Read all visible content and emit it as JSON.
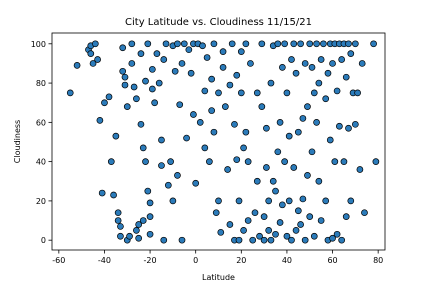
{
  "chart_data": {
    "type": "scatter",
    "title": "City Latitude vs. Cloudiness 11/15/21",
    "x_label": "Latitude",
    "y_label": "Cloudiness",
    "color": "#2b7bba",
    "edge_color": "#000000",
    "grid": false,
    "xlim": [
      -63,
      83
    ],
    "ylim": [
      -5,
      105.5
    ],
    "xticks": [
      -60,
      -40,
      -20,
      0,
      20,
      40,
      60,
      80
    ],
    "yticks": [
      0,
      20,
      40,
      60,
      80,
      100
    ],
    "x": [
      -55,
      -52,
      -47,
      -46,
      -45,
      -46,
      -44,
      -43,
      -42,
      -41,
      -40,
      -38,
      -37,
      -36,
      -35,
      -34,
      -34,
      -33,
      -33,
      -32,
      -32,
      -31,
      -31,
      -30,
      -30,
      -29,
      -28,
      -28,
      -27,
      -26,
      -26,
      -25,
      -25,
      -24,
      -24,
      -23,
      -23,
      -22,
      -22,
      -21,
      -21,
      -20,
      -20,
      -20,
      -19,
      -19,
      -18,
      -17,
      -16,
      -15,
      -15,
      -14,
      -14,
      -13,
      -12,
      -11,
      -10,
      -10,
      -9,
      -8,
      -8,
      -7,
      -6,
      -6,
      -5,
      -4,
      -3,
      -2,
      -1,
      -1,
      0,
      1,
      2,
      3,
      4,
      4,
      5,
      6,
      7,
      7,
      8,
      8,
      9,
      10,
      10,
      11,
      12,
      12,
      13,
      14,
      15,
      15,
      16,
      17,
      17,
      18,
      18,
      19,
      19,
      20,
      20,
      21,
      21,
      22,
      22,
      23,
      23,
      24,
      25,
      26,
      27,
      27,
      28,
      29,
      29,
      30,
      30,
      31,
      31,
      32,
      32,
      33,
      33,
      34,
      34,
      35,
      35,
      36,
      36,
      37,
      37,
      38,
      38,
      39,
      39,
      40,
      40,
      41,
      41,
      42,
      42,
      43,
      43,
      44,
      44,
      45,
      45,
      46,
      46,
      47,
      47,
      48,
      48,
      49,
      49,
      50,
      50,
      51,
      51,
      52,
      52,
      53,
      53,
      54,
      54,
      55,
      55,
      56,
      57,
      57,
      58,
      58,
      59,
      59,
      60,
      60,
      61,
      61,
      62,
      62,
      63,
      63,
      64,
      64,
      65,
      65,
      66,
      66,
      67,
      67,
      68,
      68,
      69,
      70,
      70,
      71,
      72,
      73,
      74,
      78,
      79
    ],
    "values": [
      75,
      89,
      97,
      95,
      90,
      99,
      100,
      92,
      61,
      24,
      70,
      73,
      40,
      23,
      53,
      14,
      10,
      7,
      2,
      98,
      86,
      79,
      83,
      68,
      0,
      2,
      100,
      90,
      78,
      72,
      5,
      8,
      1,
      95,
      59,
      47,
      10,
      40,
      81,
      100,
      25,
      19,
      12,
      3,
      87,
      77,
      70,
      95,
      80,
      51,
      38,
      92,
      0,
      100,
      28,
      40,
      99,
      20,
      86,
      100,
      33,
      69,
      90,
      0,
      100,
      52,
      97,
      85,
      64,
      100,
      29,
      100,
      60,
      99,
      47,
      76,
      93,
      40,
      82,
      66,
      100,
      55,
      14,
      75,
      20,
      4,
      96,
      88,
      68,
      36,
      79,
      8,
      100,
      0,
      59,
      41,
      84,
      20,
      0,
      96,
      75,
      47,
      5,
      100,
      55,
      10,
      40,
      90,
      0,
      14,
      75,
      30,
      2,
      100,
      68,
      12,
      0,
      57,
      37,
      20,
      5,
      80,
      0,
      99,
      30,
      25,
      3,
      45,
      100,
      60,
      9,
      88,
      18,
      100,
      40,
      75,
      2,
      53,
      20,
      92,
      0,
      100,
      37,
      85,
      5,
      55,
      15,
      100,
      8,
      62,
      21,
      90,
      0,
      68,
      33,
      100,
      12,
      88,
      45,
      75,
      2,
      100,
      60,
      80,
      30,
      92,
      10,
      100,
      72,
      20,
      85,
      0,
      100,
      51,
      90,
      1,
      100,
      40,
      76,
      3,
      100,
      58,
      92,
      0,
      100,
      40,
      83,
      12,
      100,
      57,
      95,
      20,
      75,
      100,
      59,
      75,
      36,
      90,
      14,
      100,
      40
    ]
  }
}
